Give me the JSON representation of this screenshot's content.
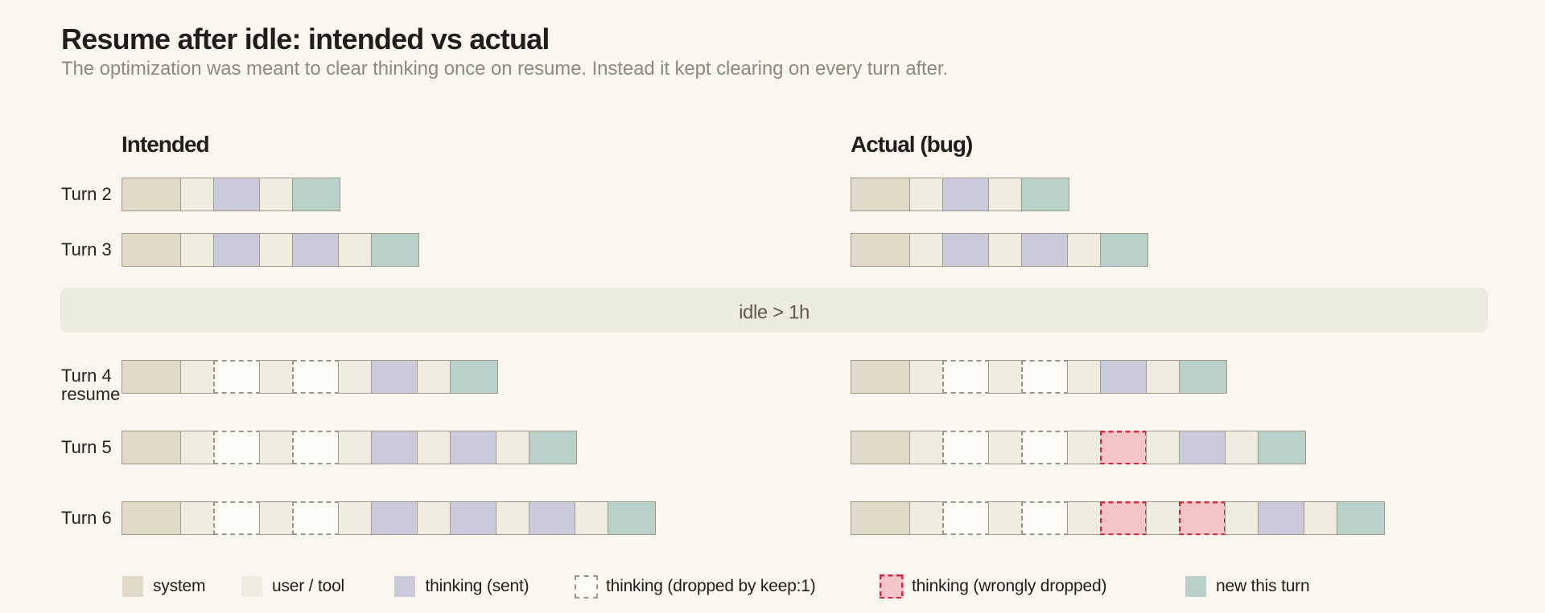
{
  "title": "Resume after idle: intended vs actual",
  "subtitle": "The optimization was meant to clear thinking once on resume. Instead it kept clearing on every turn after.",
  "columns": [
    {
      "id": "intended",
      "heading": "Intended"
    },
    {
      "id": "actual",
      "heading": "Actual (bug)"
    }
  ],
  "idle_band": {
    "label": "idle > 1h"
  },
  "rows": [
    {
      "label_lines": [
        "Turn 2"
      ],
      "intended": [
        "system",
        "user",
        "thinking",
        "user",
        "new"
      ],
      "actual": [
        "system",
        "user",
        "thinking",
        "user",
        "new"
      ]
    },
    {
      "label_lines": [
        "Turn 3"
      ],
      "intended": [
        "system",
        "user",
        "thinking",
        "user",
        "thinking",
        "user",
        "new"
      ],
      "actual": [
        "system",
        "user",
        "thinking",
        "user",
        "thinking",
        "user",
        "new"
      ]
    },
    {
      "label_lines": [
        "Turn 4",
        "resume"
      ],
      "intended": [
        "system",
        "user",
        "dropped",
        "user",
        "dropped",
        "user",
        "thinking",
        "user",
        "new"
      ],
      "actual": [
        "system",
        "user",
        "dropped",
        "user",
        "dropped",
        "user",
        "thinking",
        "user",
        "new"
      ]
    },
    {
      "label_lines": [
        "Turn 5"
      ],
      "intended": [
        "system",
        "user",
        "dropped",
        "user",
        "dropped",
        "user",
        "thinking",
        "user",
        "thinking",
        "user",
        "new"
      ],
      "actual": [
        "system",
        "user",
        "dropped",
        "user",
        "dropped",
        "user",
        "wrong",
        "user",
        "thinking",
        "user",
        "new"
      ]
    },
    {
      "label_lines": [
        "Turn 6"
      ],
      "intended": [
        "system",
        "user",
        "dropped",
        "user",
        "dropped",
        "user",
        "thinking",
        "user",
        "thinking",
        "user",
        "thinking",
        "user",
        "new"
      ],
      "actual": [
        "system",
        "user",
        "dropped",
        "user",
        "dropped",
        "user",
        "wrong",
        "user",
        "wrong",
        "user",
        "thinking",
        "user",
        "new"
      ]
    }
  ],
  "legend": [
    {
      "type": "system",
      "label": "system"
    },
    {
      "type": "user",
      "label": "user / tool"
    },
    {
      "type": "thinking",
      "label": "thinking (sent)"
    },
    {
      "type": "dropped",
      "label": "thinking (dropped by keep:1)"
    },
    {
      "type": "wrong",
      "label": "thinking (wrongly dropped)"
    },
    {
      "type": "new",
      "label": "new this turn"
    }
  ],
  "colors": {
    "background": "#f9f7f0",
    "title_text": "#1f1e1a",
    "subtitle_text": "#8d8a7e",
    "row_label_text": "#24231f",
    "idle_band_background": "#ecebdf",
    "idle_band_text": "#5e5c50",
    "block_border": "#9e998b",
    "system": "#e2dac8",
    "user_tool": "#eeede0",
    "thinking_sent": "#cbcadb",
    "new_this_turn": "#b9d1c8",
    "dropped_fill": "#fcfbf5",
    "dropped_border": "#a39f92",
    "wrongly_dropped_fill": "#f3c5c8",
    "wrongly_dropped_border": "#d22944"
  }
}
